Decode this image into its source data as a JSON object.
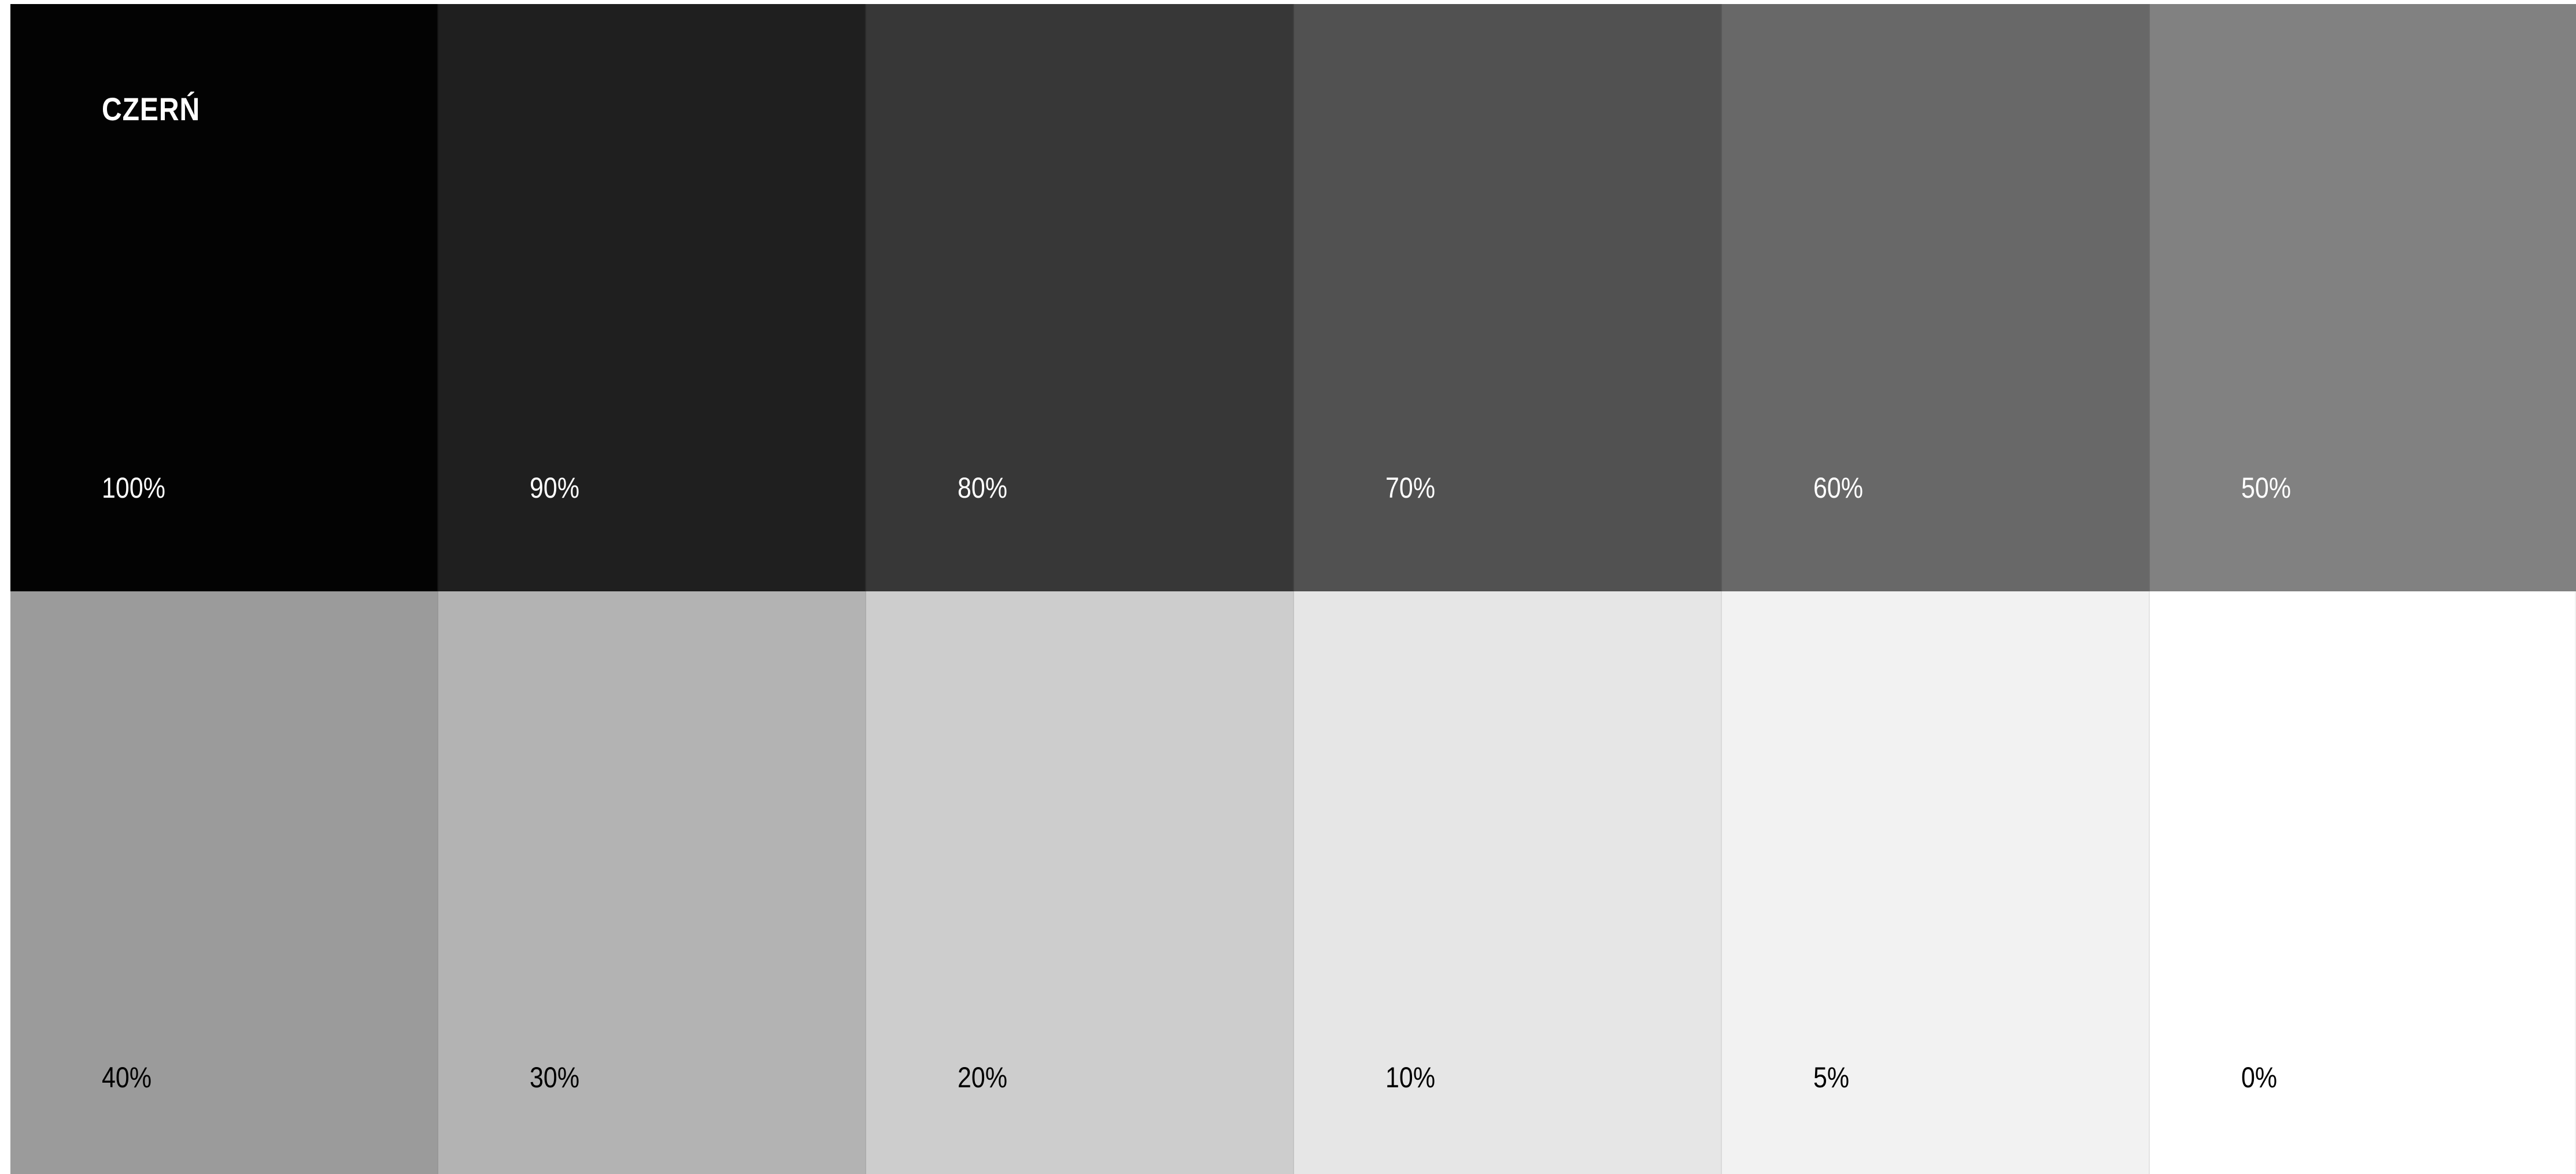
{
  "title": "CZERŃ",
  "swatches": [
    {
      "label": "100%",
      "color": "#030303",
      "text_color": "#ffffff"
    },
    {
      "label": "90%",
      "color": "#1f1f1f",
      "text_color": "#ffffff"
    },
    {
      "label": "80%",
      "color": "#373737",
      "text_color": "#ffffff"
    },
    {
      "label": "70%",
      "color": "#515151",
      "text_color": "#ffffff"
    },
    {
      "label": "60%",
      "color": "#686868",
      "text_color": "#ffffff"
    },
    {
      "label": "50%",
      "color": "#818181",
      "text_color": "#ffffff"
    },
    {
      "label": "40%",
      "color": "#9b9b9b",
      "text_color": "#000000"
    },
    {
      "label": "30%",
      "color": "#b3b3b3",
      "text_color": "#000000"
    },
    {
      "label": "20%",
      "color": "#cdcdcd",
      "text_color": "#000000"
    },
    {
      "label": "10%",
      "color": "#e6e6e6",
      "text_color": "#000000"
    },
    {
      "label": "5%",
      "color": "#f2f2f2",
      "text_color": "#000000"
    },
    {
      "label": "0%",
      "color": "#ffffff",
      "text_color": "#000000"
    }
  ]
}
